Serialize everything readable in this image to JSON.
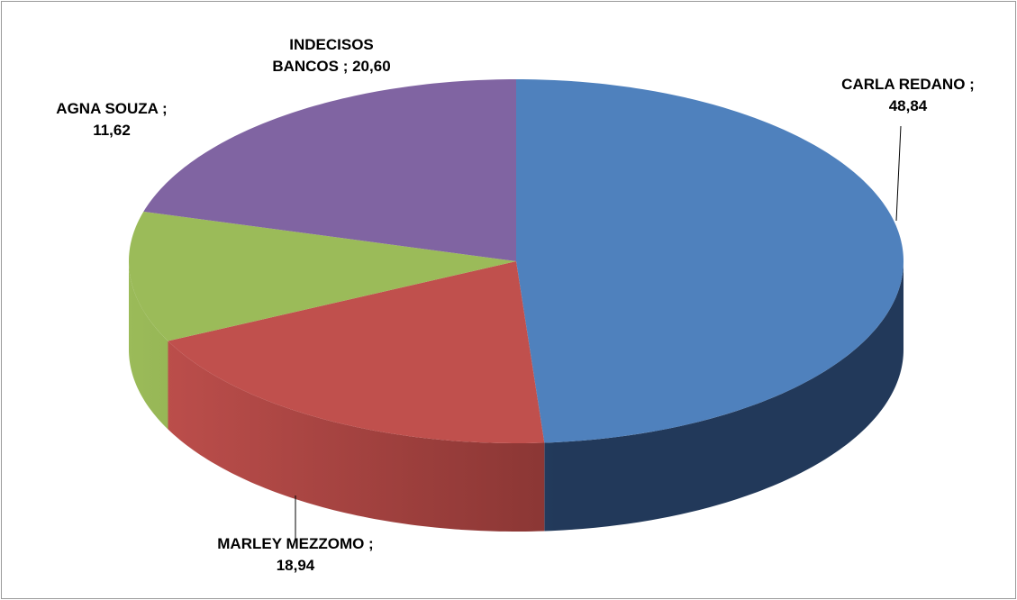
{
  "chart_data": {
    "type": "pie3d",
    "values": [
      48.84,
      18.94,
      11.62,
      20.6
    ],
    "value_labels": [
      "CARLA REDANO ; 48,84",
      "MARLEY MEZZOMO ; 18,94",
      "AGNA SOUZA ; 11,62",
      "INDECISOS BANCOS ; 20,60"
    ],
    "colors": [
      "#4f81bd",
      "#c0504d",
      "#9bbb59",
      "#8064a2"
    ],
    "side_colors": [
      "#22395a",
      "#8a3634",
      "#6f8a3a",
      "#5a4676"
    ]
  }
}
